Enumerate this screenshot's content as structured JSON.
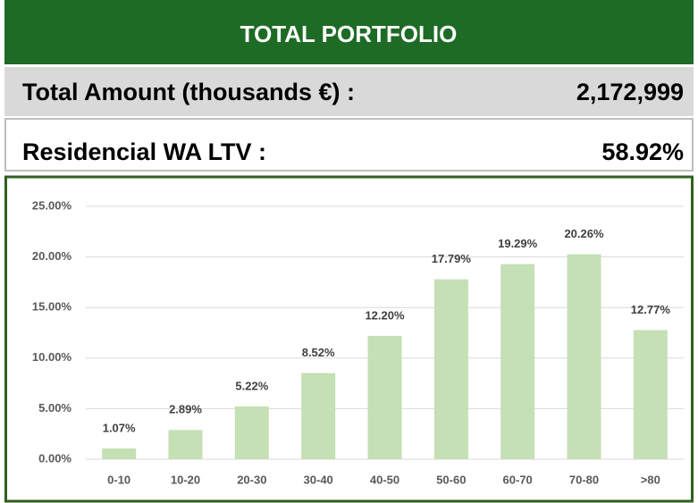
{
  "header": {
    "title": "TOTAL PORTFOLIO",
    "rows": [
      [
        "Total Amount (thousands €) :",
        "2,172,999"
      ],
      [
        "Residencial WA LTV :",
        "58.92%"
      ]
    ]
  },
  "chart_data": {
    "type": "bar",
    "categories": [
      "0-10",
      "10-20",
      "20-30",
      "30-40",
      "40-50",
      "50-60",
      "60-70",
      "70-80",
      ">80"
    ],
    "values": [
      1.07,
      2.89,
      5.22,
      8.52,
      12.2,
      17.79,
      19.29,
      20.26,
      12.77
    ],
    "value_labels": [
      "1.07%",
      "2.89%",
      "5.22%",
      "8.52%",
      "12.20%",
      "17.79%",
      "19.29%",
      "20.26%",
      "12.77%"
    ],
    "color": "#c5e0b4",
    "ylim": [
      0,
      25
    ],
    "yticks": [
      {
        "value": 0,
        "label": "0.00%"
      },
      {
        "value": 5,
        "label": "5.00%"
      },
      {
        "value": 10,
        "label": "10.00%"
      },
      {
        "value": 15,
        "label": "15.00%"
      },
      {
        "value": 20,
        "label": "20.00%"
      },
      {
        "value": 25,
        "label": "25.00%"
      }
    ],
    "grid": true
  }
}
